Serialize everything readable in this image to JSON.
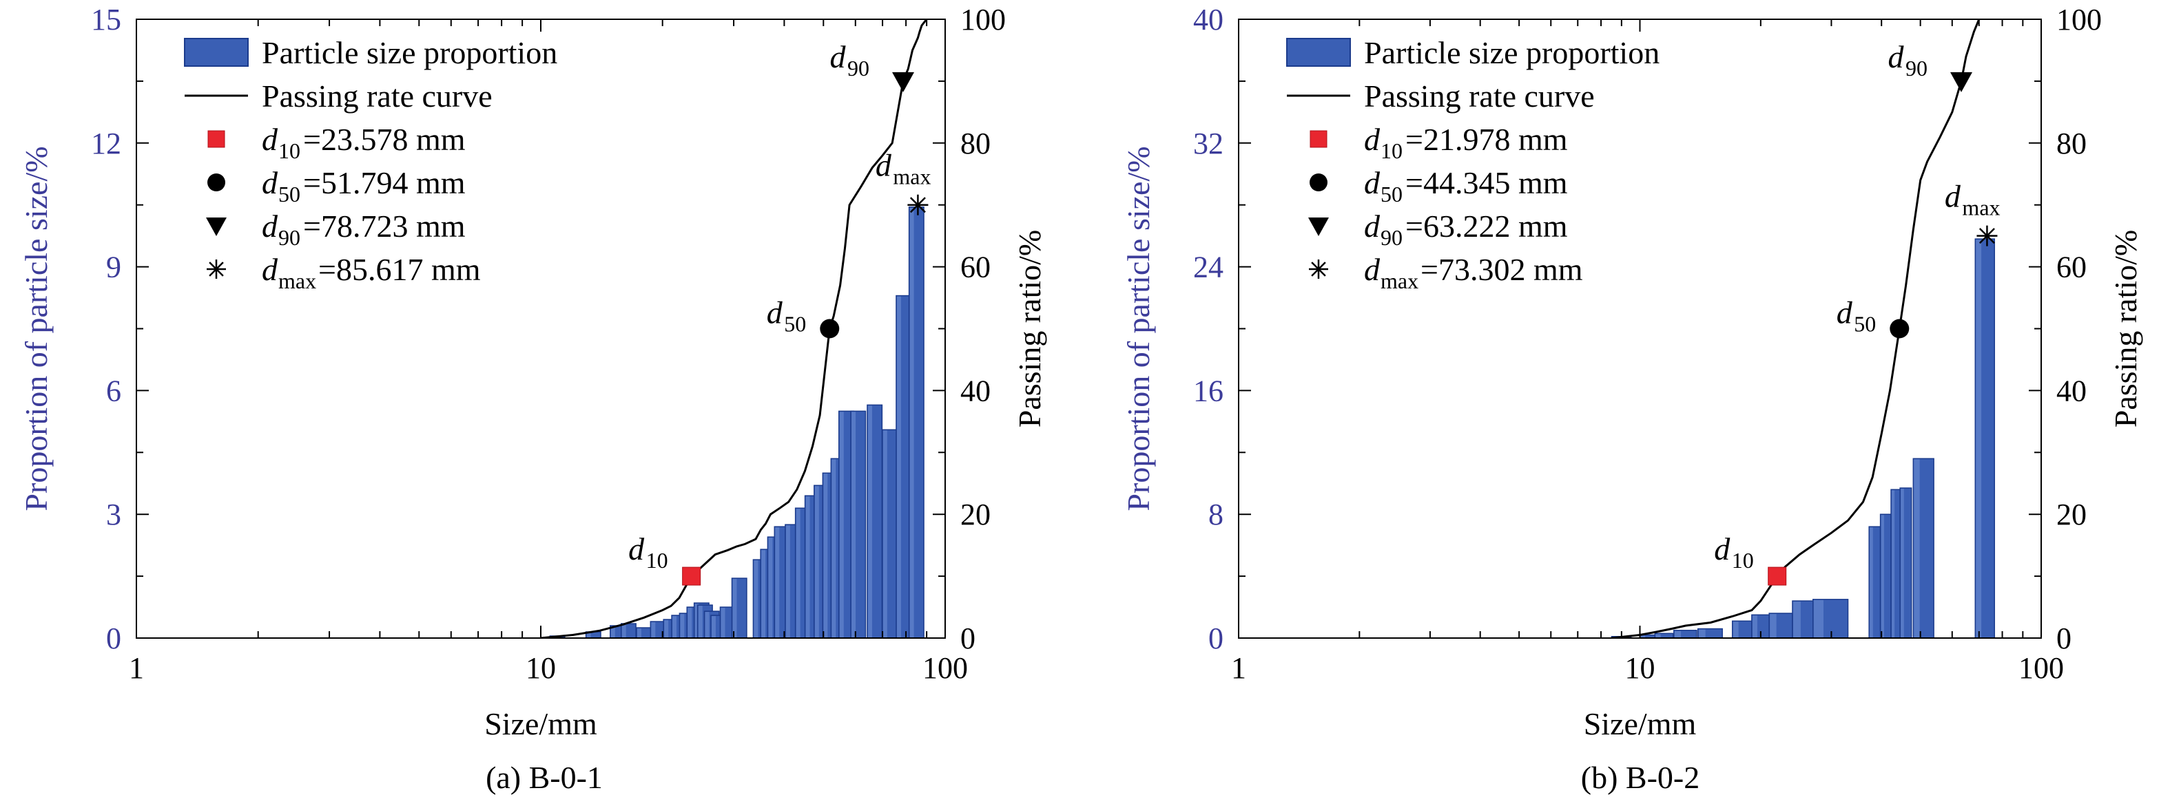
{
  "figure": {
    "colors": {
      "bar_fill": "#3a5fb4",
      "bar_edge": "#1b3b8c",
      "bar_highlight": "#6f8fd6",
      "curve": "#000000",
      "d10_marker": "#e8262f",
      "left_axis_text": "#3c3c9a",
      "right_axis_text": "#000000"
    }
  },
  "chart_data": [
    {
      "type": "bar",
      "panel_caption": "(a) B-0-1",
      "xlabel": "Size/mm",
      "xscale": "log",
      "xlim": [
        1,
        100
      ],
      "xticks": [
        "1",
        "10",
        "100"
      ],
      "ylabel_left": "Proportion of particle size/%",
      "ylim_left": [
        0,
        15
      ],
      "yticks_left": [
        "0",
        "3",
        "6",
        "9",
        "12",
        "15"
      ],
      "ylabel_right": "Passing ratio/%",
      "ylim_right": [
        0,
        100
      ],
      "yticks_right": [
        "0",
        "20",
        "40",
        "60",
        "80",
        "100"
      ],
      "grid": false,
      "legend_position": "top-left",
      "legend": [
        {
          "kind": "bar",
          "text": "Particle size proportion"
        },
        {
          "kind": "line",
          "text": "Passing rate curve"
        },
        {
          "kind": "square",
          "sym": "d",
          "sub": "10",
          "value": "=23.578 mm"
        },
        {
          "kind": "circle",
          "sym": "d",
          "sub": "50",
          "value": "=51.794 mm"
        },
        {
          "kind": "triangle",
          "sym": "d",
          "sub": "90",
          "value": "=78.723 mm"
        },
        {
          "kind": "asterisk",
          "sym": "d",
          "sub": "max",
          "value": "=85.617 mm"
        }
      ],
      "series": [
        {
          "name": "Particle size proportion",
          "kind": "bar",
          "x": [
            11,
            13.5,
            15.5,
            16.5,
            18,
            19.5,
            21,
            22,
            23,
            24,
            25,
            25.5,
            26.5,
            27.5,
            29,
            31,
            35,
            36.5,
            38,
            39.5,
            42,
            44.5,
            47,
            49.5,
            52,
            54.5,
            57,
            61,
            67,
            73,
            79,
            85
          ],
          "y": [
            0.05,
            0.15,
            0.3,
            0.35,
            0.25,
            0.4,
            0.45,
            0.55,
            0.6,
            0.75,
            0.85,
            0.8,
            0.65,
            0.55,
            0.75,
            1.45,
            1.9,
            2.15,
            2.45,
            2.7,
            2.75,
            3.15,
            3.45,
            3.7,
            4.0,
            4.35,
            5.5,
            5.5,
            5.65,
            5.05,
            8.3,
            10.45
          ],
          "width_factor": 0.042
        },
        {
          "name": "Passing rate curve",
          "kind": "line",
          "axis": "right",
          "x": [
            10,
            12,
            14,
            16,
            18,
            20,
            21,
            22,
            23.578,
            25,
            27,
            29,
            30.5,
            32,
            34,
            35,
            36,
            37,
            39,
            41,
            43,
            45,
            47,
            49,
            51.794,
            53,
            55,
            56.5,
            58,
            62,
            66,
            70,
            74,
            78.723,
            81,
            83,
            85.617,
            86.5,
            87.5,
            90
          ],
          "y": [
            0,
            0.5,
            1.2,
            2.2,
            3.3,
            4.5,
            5.2,
            6.5,
            10,
            11.5,
            13.5,
            14.2,
            14.8,
            15.2,
            16,
            17.5,
            18.5,
            20,
            21,
            22,
            24,
            27,
            31,
            36,
            50,
            52,
            57,
            63,
            70,
            73,
            76,
            78,
            80,
            90,
            92,
            95,
            97,
            98,
            99,
            100
          ]
        }
      ],
      "points": [
        {
          "label_sym": "d",
          "label_sub": "10",
          "marker": "square",
          "x": 23.578,
          "y": 10
        },
        {
          "label_sym": "d",
          "label_sub": "50",
          "marker": "circle",
          "x": 51.794,
          "y": 50
        },
        {
          "label_sym": "d",
          "label_sub": "90",
          "marker": "triangle",
          "x": 78.723,
          "y": 90
        },
        {
          "label_sym": "d",
          "label_sub": "max",
          "marker": "asterisk",
          "x": 85.617,
          "y": 70
        }
      ]
    },
    {
      "type": "bar",
      "panel_caption": "(b) B-0-2",
      "xlabel": "Size/mm",
      "xscale": "log",
      "xlim": [
        1,
        100
      ],
      "xticks": [
        "1",
        "10",
        "100"
      ],
      "ylabel_left": "Proportion of particle size/%",
      "ylim_left": [
        0,
        40
      ],
      "yticks_left": [
        "0",
        "8",
        "16",
        "24",
        "32",
        "40"
      ],
      "ylabel_right": "Passing ratio/%",
      "ylim_right": [
        0,
        100
      ],
      "yticks_right": [
        "0",
        "20",
        "40",
        "60",
        "80",
        "100"
      ],
      "grid": false,
      "legend_position": "top-left",
      "legend": [
        {
          "kind": "bar",
          "text": "Particle size proportion"
        },
        {
          "kind": "line",
          "text": "Passing rate curve"
        },
        {
          "kind": "square",
          "sym": "d",
          "sub": "10",
          "value": "=21.978 mm"
        },
        {
          "kind": "circle",
          "sym": "d",
          "sub": "50",
          "value": "=44.345 mm"
        },
        {
          "kind": "triangle",
          "sym": "d",
          "sub": "90",
          "value": "=63.222 mm"
        },
        {
          "kind": "asterisk",
          "sym": "d",
          "sub": "max",
          "value": "=73.302 mm"
        }
      ],
      "series": [
        {
          "name": "Particle size proportion",
          "kind": "bar",
          "x": [
            9,
            10.5,
            11.5,
            13,
            15,
            18,
            20,
            22.5,
            26,
            30,
            38.5,
            41,
            43.5,
            46,
            51,
            72.5
          ],
          "y": [
            0.1,
            0.2,
            0.3,
            0.5,
            0.6,
            1.1,
            1.5,
            1.6,
            2.4,
            2.5,
            7.2,
            8.0,
            9.6,
            9.7,
            11.6,
            25.8
          ],
          "widths": [
            1.0,
            1.0,
            1.2,
            1.7,
            2.1,
            2.0,
            2.0,
            3.0,
            4.0,
            6.0,
            2.5,
            2.5,
            2.5,
            3.0,
            6.0,
            8.0
          ]
        },
        {
          "name": "Passing rate curve",
          "kind": "line",
          "axis": "right",
          "x": [
            8.5,
            10,
            11,
            12,
            13,
            15,
            17,
            19,
            20,
            21.978,
            23,
            25,
            27,
            30,
            33,
            36,
            38,
            40,
            42,
            44.345,
            46,
            48,
            50,
            52,
            56,
            60,
            63.222,
            65,
            68,
            70
          ],
          "y": [
            0,
            0.5,
            1,
            1.5,
            2,
            2.5,
            3.5,
            4.5,
            6,
            10,
            11.5,
            13.5,
            15,
            17,
            19,
            22,
            26,
            33,
            40,
            50,
            57,
            66,
            74,
            77,
            81,
            85,
            90,
            94,
            98,
            100
          ]
        }
      ],
      "points": [
        {
          "label_sym": "d",
          "label_sub": "10",
          "marker": "square",
          "x": 21.978,
          "y": 10
        },
        {
          "label_sym": "d",
          "label_sub": "50",
          "marker": "circle",
          "x": 44.345,
          "y": 50
        },
        {
          "label_sym": "d",
          "label_sub": "90",
          "marker": "triangle",
          "x": 63.222,
          "y": 90
        },
        {
          "label_sym": "d",
          "label_sub": "max",
          "marker": "asterisk",
          "x": 73.302,
          "y": 65
        }
      ]
    }
  ]
}
